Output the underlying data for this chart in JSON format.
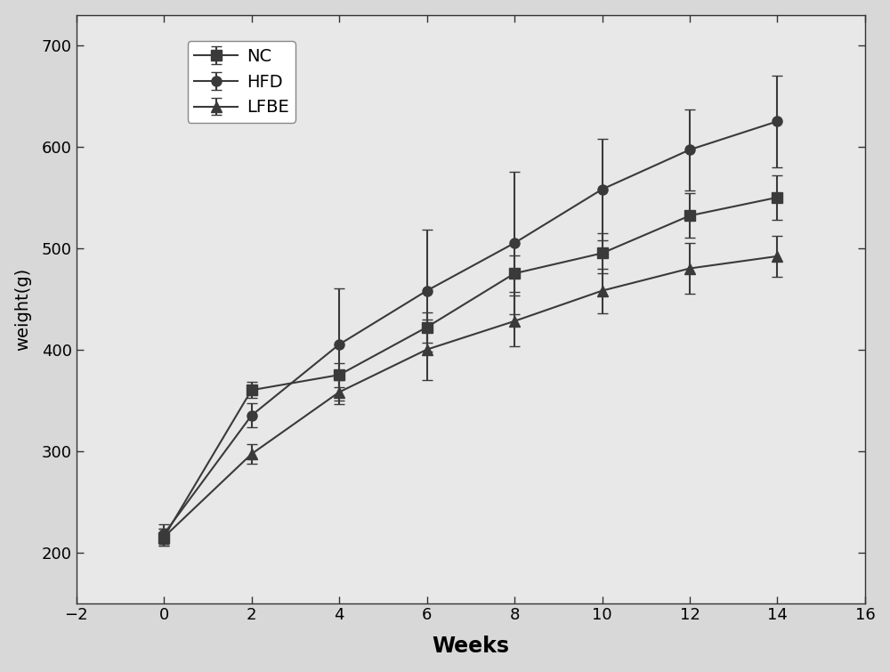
{
  "weeks": [
    0,
    2,
    4,
    6,
    8,
    10,
    12,
    14
  ],
  "NC_mean": [
    215,
    360,
    375,
    422,
    475,
    495,
    532,
    550
  ],
  "NC_err": [
    8,
    8,
    12,
    15,
    18,
    20,
    22,
    22
  ],
  "HFD_mean": [
    218,
    335,
    405,
    458,
    505,
    558,
    597,
    625
  ],
  "HFD_err": [
    10,
    12,
    55,
    60,
    70,
    50,
    40,
    45
  ],
  "LFBE_mean": [
    215,
    297,
    358,
    400,
    428,
    458,
    480,
    492
  ],
  "LFBE_err": [
    8,
    10,
    12,
    30,
    25,
    22,
    25,
    20
  ],
  "xlim": [
    -2,
    16
  ],
  "ylim": [
    150,
    730
  ],
  "xticks": [
    -2,
    0,
    2,
    4,
    6,
    8,
    10,
    12,
    14,
    16
  ],
  "yticks": [
    200,
    300,
    400,
    500,
    600,
    700
  ],
  "xlabel": "Weeks",
  "ylabel": "weight(g)",
  "line_color": "#3a3a3a",
  "bg_color": "#e8e8e8",
  "legend_labels": [
    "NC",
    "HFD",
    "LFBE"
  ],
  "marker_NC": "-s",
  "marker_HFD": "-o",
  "marker_LFBE": "-^",
  "markersize": 8,
  "linewidth": 1.5,
  "capsize": 4
}
